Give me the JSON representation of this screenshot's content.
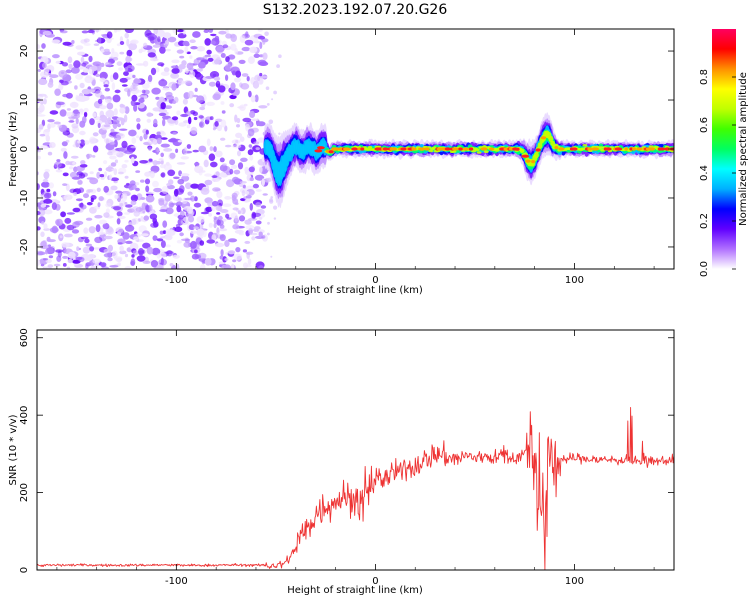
{
  "figure": {
    "title": "S132.2023.192.07.20.G26"
  },
  "chart_data": [
    {
      "type": "heatmap",
      "xlabel": "Height of straight line (km)",
      "ylabel": "Frequency (Hz)",
      "xlim": [
        -170,
        150
      ],
      "ylim": [
        -24.5,
        24.5
      ],
      "xticks": [
        -100,
        0,
        100
      ],
      "yticks": [
        -20,
        -10,
        0,
        10,
        20
      ],
      "grid": false,
      "noise_region": {
        "x": [
          -170,
          -55
        ],
        "y": [
          -24.5,
          24.5
        ]
      },
      "ridge": {
        "x_start": -55,
        "x_end": 150,
        "center_frequency_hz": 0,
        "features": [
          {
            "x": -48,
            "y": -5,
            "note": "disturbance"
          },
          {
            "x": 78,
            "y": -3,
            "note": "disturbance"
          },
          {
            "x": 86,
            "y": 3,
            "note": "disturbance"
          }
        ]
      },
      "colorbar": {
        "label": "Normalized spectral amplitude",
        "range": [
          0,
          1
        ],
        "ticks": [
          0.0,
          0.2,
          0.4,
          0.6,
          0.8
        ],
        "colormap": [
          "#ffffff",
          "#b070ff",
          "#6000ff",
          "#0000ff",
          "#00b0ff",
          "#00ffff",
          "#00ff60",
          "#40ff00",
          "#c0ff00",
          "#ffff00",
          "#ff9000",
          "#ff0000",
          "#ff0060"
        ]
      }
    },
    {
      "type": "line",
      "xlabel": "Height of straight line (km)",
      "ylabel": "SNR (10 * v/v)",
      "xlim": [
        -170,
        150
      ],
      "ylim": [
        0,
        620
      ],
      "xticks": [
        -100,
        0,
        100
      ],
      "yticks": [
        0,
        200,
        400,
        600
      ],
      "grid": false,
      "series": [
        {
          "color": "#ee3333",
          "x": [
            -170,
            -150,
            -130,
            -110,
            -90,
            -70,
            -55,
            -48,
            -45,
            -42,
            -40,
            -38,
            -35,
            -32,
            -30,
            -28,
            -25,
            -22,
            -20,
            -17,
            -15,
            -12,
            -10,
            -7,
            -5,
            -2,
            0,
            3,
            6,
            10,
            15,
            20,
            25,
            30,
            35,
            38,
            40,
            45,
            50,
            55,
            60,
            65,
            70,
            75,
            78,
            80,
            82,
            84,
            85,
            86,
            87,
            88,
            89,
            90,
            92,
            95,
            100,
            110,
            120,
            130,
            140,
            150
          ],
          "values": [
            12,
            13,
            12,
            13,
            12,
            13,
            12,
            12,
            20,
            40,
            60,
            85,
            100,
            120,
            145,
            155,
            165,
            175,
            180,
            185,
            190,
            185,
            175,
            165,
            185,
            215,
            240,
            235,
            240,
            250,
            260,
            270,
            285,
            300,
            295,
            290,
            285,
            295,
            290,
            295,
            290,
            295,
            290,
            300,
            305,
            290,
            200,
            120,
            80,
            90,
            310,
            330,
            290,
            270,
            290,
            285,
            290,
            285,
            285,
            280,
            280,
            285
          ]
        }
      ]
    }
  ]
}
